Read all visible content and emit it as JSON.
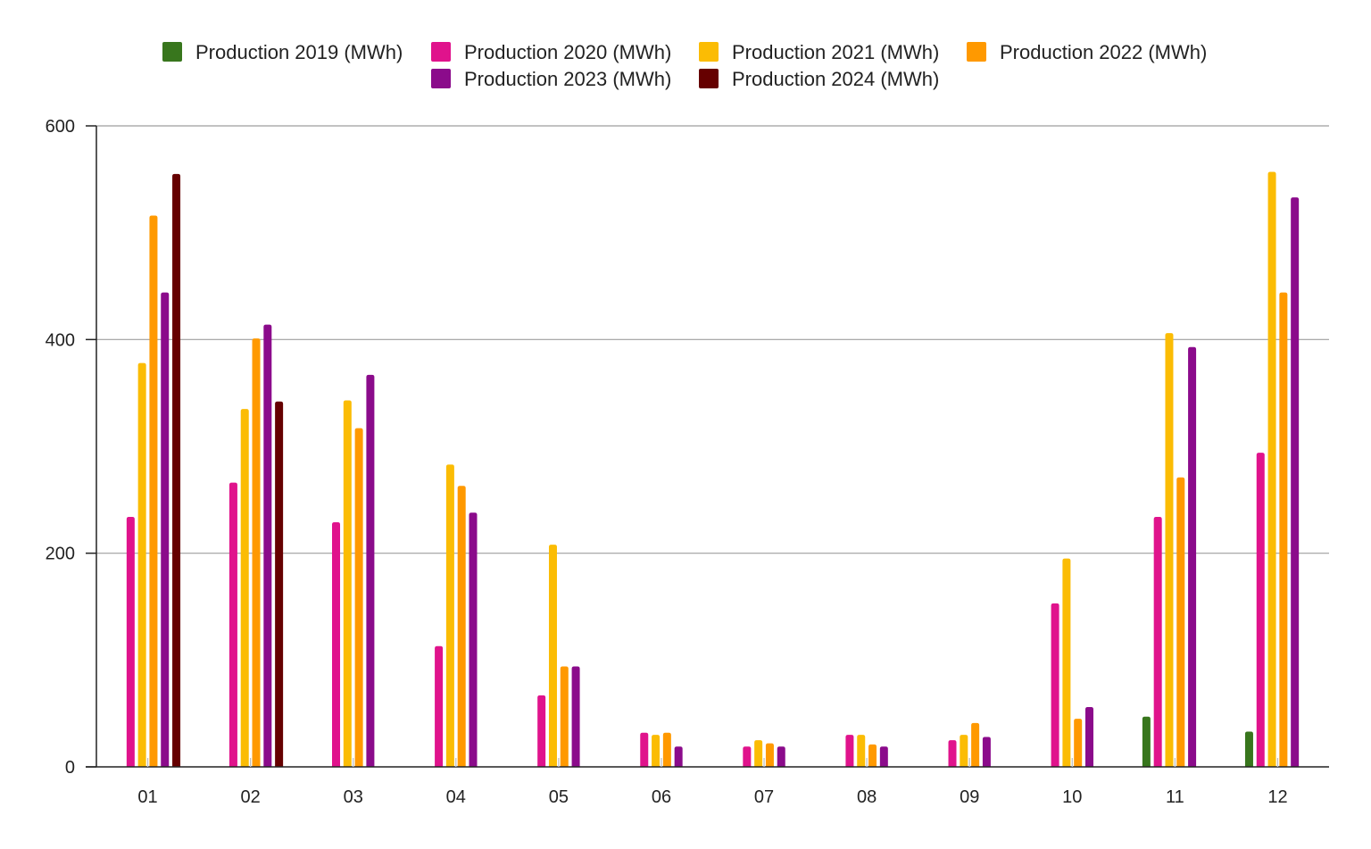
{
  "chart_data": {
    "type": "bar",
    "title": "",
    "xlabel": "",
    "ylabel": "",
    "ylim": [
      0,
      600
    ],
    "yticks": [
      0,
      200,
      400,
      600
    ],
    "grid": true,
    "legend_position": "top-center",
    "categories": [
      "01",
      "02",
      "03",
      "04",
      "05",
      "06",
      "07",
      "08",
      "09",
      "10",
      "11",
      "12"
    ],
    "series": [
      {
        "name": "Production 2019 (MWh)",
        "color": "#38761d",
        "values": [
          null,
          null,
          null,
          null,
          null,
          null,
          null,
          null,
          null,
          null,
          47,
          33
        ]
      },
      {
        "name": "Production 2020 (MWh)",
        "color": "#e0138c",
        "values": [
          234,
          266,
          229,
          113,
          67,
          32,
          19,
          30,
          25,
          153,
          234,
          294
        ]
      },
      {
        "name": "Production 2021 (MWh)",
        "color": "#fbbc04",
        "values": [
          378,
          335,
          343,
          283,
          208,
          30,
          25,
          30,
          30,
          195,
          406,
          557
        ]
      },
      {
        "name": "Production 2022 (MWh)",
        "color": "#ff9900",
        "values": [
          516,
          401,
          317,
          263,
          94,
          32,
          22,
          21,
          41,
          45,
          271,
          444
        ]
      },
      {
        "name": "Production 2023 (MWh)",
        "color": "#8b0b8b",
        "values": [
          444,
          414,
          367,
          238,
          94,
          19,
          19,
          19,
          28,
          56,
          393,
          533
        ]
      },
      {
        "name": "Production 2024 (MWh)",
        "color": "#660000",
        "values": [
          555,
          342,
          null,
          null,
          null,
          null,
          null,
          null,
          null,
          null,
          null,
          null
        ]
      }
    ]
  }
}
